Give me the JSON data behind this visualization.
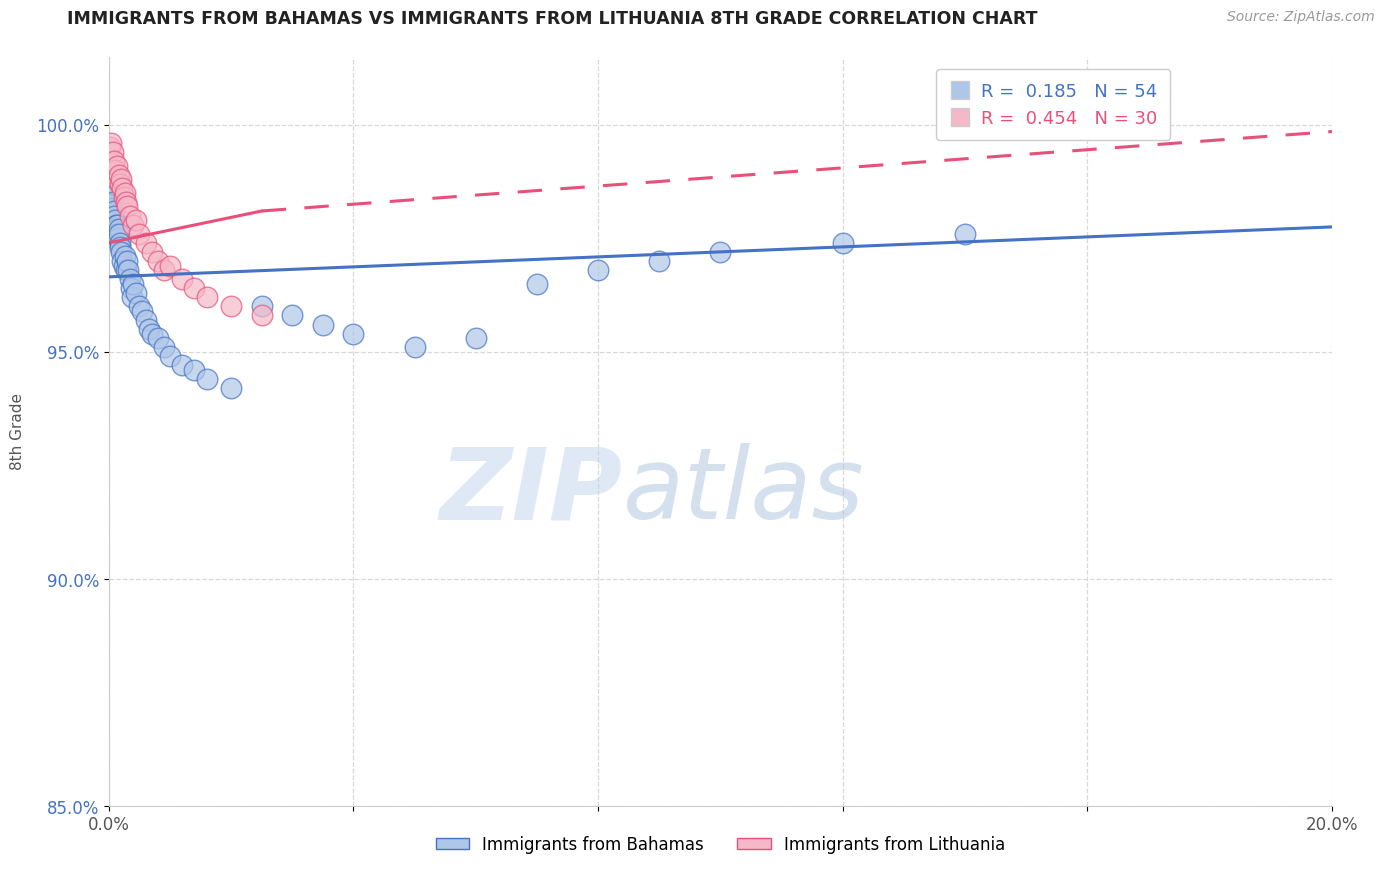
{
  "title": "IMMIGRANTS FROM BAHAMAS VS IMMIGRANTS FROM LITHUANIA 8TH GRADE CORRELATION CHART",
  "source_text": "Source: ZipAtlas.com",
  "ylabel": "8th Grade",
  "x_min": 0.0,
  "x_max": 0.2,
  "y_min": 0.935,
  "y_max": 1.015,
  "x_ticks": [
    0.0,
    0.04,
    0.08,
    0.12,
    0.16,
    0.2
  ],
  "x_tick_labels": [
    "0.0%",
    "",
    "",
    "",
    "",
    "20.0%"
  ],
  "y_ticks": [
    0.85,
    0.9,
    0.95,
    1.0
  ],
  "y_tick_labels": [
    "85.0%",
    "90.0%",
    "95.0%",
    "100.0%"
  ],
  "bahamas_color": "#aec6e8",
  "lithuania_color": "#f5b8c8",
  "bahamas_line_color": "#4472c4",
  "lithuania_line_color": "#e8507a",
  "legend_R_bahamas": "0.185",
  "legend_N_bahamas": "54",
  "legend_R_lithuania": "0.454",
  "legend_N_lithuania": "30",
  "bahamas_x": [
    0.0002,
    0.0003,
    0.0004,
    0.0005,
    0.0006,
    0.0007,
    0.0008,
    0.0009,
    0.001,
    0.0011,
    0.0012,
    0.0013,
    0.0014,
    0.0015,
    0.0016,
    0.0017,
    0.0018,
    0.0019,
    0.002,
    0.0022,
    0.0024,
    0.0026,
    0.0028,
    0.003,
    0.0032,
    0.0034,
    0.0036,
    0.0038,
    0.004,
    0.0045,
    0.005,
    0.0055,
    0.006,
    0.0065,
    0.007,
    0.008,
    0.009,
    0.01,
    0.012,
    0.014,
    0.016,
    0.02,
    0.025,
    0.03,
    0.035,
    0.04,
    0.05,
    0.06,
    0.07,
    0.08,
    0.09,
    0.1,
    0.12,
    0.14
  ],
  "bahamas_y": [
    0.982,
    0.985,
    0.984,
    0.986,
    0.987,
    0.983,
    0.981,
    0.98,
    0.979,
    0.978,
    0.977,
    0.978,
    0.976,
    0.975,
    0.977,
    0.976,
    0.974,
    0.973,
    0.972,
    0.97,
    0.969,
    0.971,
    0.968,
    0.97,
    0.968,
    0.966,
    0.964,
    0.962,
    0.965,
    0.963,
    0.96,
    0.959,
    0.957,
    0.955,
    0.954,
    0.953,
    0.951,
    0.949,
    0.947,
    0.946,
    0.944,
    0.942,
    0.96,
    0.958,
    0.956,
    0.954,
    0.951,
    0.953,
    0.965,
    0.968,
    0.97,
    0.972,
    0.974,
    0.976
  ],
  "lithuania_x": [
    0.0002,
    0.0004,
    0.0006,
    0.0008,
    0.001,
    0.0012,
    0.0014,
    0.0016,
    0.0018,
    0.002,
    0.0022,
    0.0024,
    0.0026,
    0.0028,
    0.003,
    0.0035,
    0.004,
    0.0045,
    0.005,
    0.006,
    0.007,
    0.008,
    0.009,
    0.01,
    0.012,
    0.014,
    0.016,
    0.02,
    0.025,
    0.16
  ],
  "lithuania_y": [
    0.995,
    0.996,
    0.994,
    0.992,
    0.99,
    0.988,
    0.991,
    0.989,
    0.987,
    0.988,
    0.986,
    0.984,
    0.985,
    0.983,
    0.982,
    0.98,
    0.978,
    0.979,
    0.976,
    0.974,
    0.972,
    0.97,
    0.968,
    0.969,
    0.966,
    0.964,
    0.962,
    0.96,
    0.958,
    1.0
  ],
  "watermark_zip": "ZIP",
  "watermark_atlas": "atlas",
  "background_color": "#ffffff",
  "grid_color": "#d8d8d8"
}
